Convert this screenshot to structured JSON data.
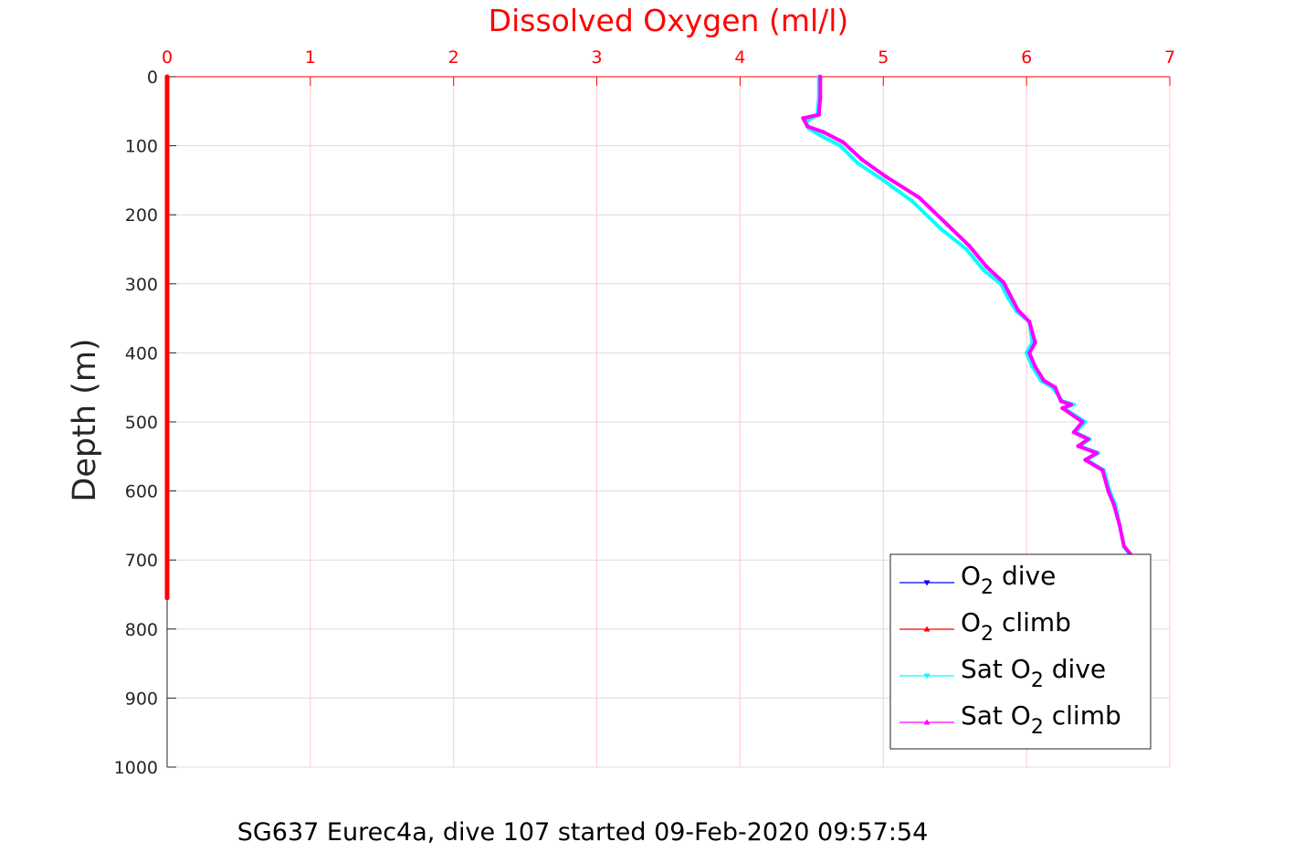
{
  "chart_data": {
    "type": "line",
    "title": "Dissolved Oxygen (ml/l)",
    "xlabel": "Dissolved Oxygen (ml/l)",
    "ylabel": "Depth (m)",
    "xlim": [
      0,
      7
    ],
    "ylim": [
      0,
      1000
    ],
    "y_reversed": true,
    "x_axis_position": "top",
    "xticks": [
      "0",
      "1",
      "2",
      "3",
      "4",
      "5",
      "6",
      "7"
    ],
    "yticks": [
      "0",
      "100",
      "200",
      "300",
      "400",
      "500",
      "600",
      "700",
      "800",
      "900",
      "1000"
    ],
    "grid": true,
    "legend_position": "bottom-right",
    "series": [
      {
        "name": "O2 dive",
        "legend_base": "O",
        "legend_sub": "2",
        "legend_suffix": " dive",
        "color": "#0000ff",
        "x": [],
        "y": []
      },
      {
        "name": "O2 climb",
        "legend_base": "O",
        "legend_sub": "2",
        "legend_suffix": " climb",
        "color": "#ff0000",
        "x": [
          0,
          0,
          0,
          0,
          0,
          0,
          0,
          0,
          0
        ],
        "y": [
          0,
          100,
          200,
          300,
          400,
          500,
          600,
          700,
          755
        ]
      },
      {
        "name": "Sat O2 dive",
        "legend_base": "Sat O",
        "legend_sub": "2",
        "legend_suffix": " dive",
        "color": "#00ffff",
        "x": [
          4.55,
          4.55,
          4.54,
          4.46,
          4.48,
          4.56,
          4.7,
          4.82,
          5.0,
          5.2,
          5.4,
          5.58,
          5.7,
          5.82,
          5.87,
          5.93,
          6.02,
          6.04,
          6.0,
          6.04,
          6.1,
          6.18,
          6.25,
          6.33,
          6.26,
          6.41,
          6.34,
          6.44,
          6.37,
          6.5,
          6.42,
          6.54,
          6.58,
          6.62,
          6.65,
          6.68,
          6.73
        ],
        "y": [
          0,
          30,
          55,
          65,
          75,
          85,
          100,
          125,
          150,
          180,
          220,
          250,
          280,
          300,
          320,
          340,
          355,
          385,
          400,
          420,
          440,
          450,
          470,
          475,
          480,
          500,
          515,
          525,
          535,
          545,
          555,
          570,
          600,
          620,
          650,
          680,
          695
        ]
      },
      {
        "name": "Sat O2 climb",
        "legend_base": "Sat O",
        "legend_sub": "2",
        "legend_suffix": " climb",
        "color": "#ff00ff",
        "x": [
          4.56,
          4.56,
          4.55,
          4.44,
          4.47,
          4.58,
          4.72,
          4.85,
          5.02,
          5.25,
          5.45,
          5.6,
          5.72,
          5.84,
          5.89,
          5.94,
          6.02,
          6.06,
          6.02,
          6.06,
          6.12,
          6.2,
          6.24,
          6.31,
          6.25,
          6.39,
          6.33,
          6.43,
          6.36,
          6.49,
          6.41,
          6.53,
          6.57,
          6.61,
          6.65,
          6.68,
          6.74
        ],
        "y": [
          0,
          30,
          55,
          60,
          72,
          80,
          95,
          120,
          145,
          175,
          215,
          245,
          275,
          298,
          318,
          338,
          355,
          385,
          400,
          420,
          440,
          450,
          470,
          475,
          480,
          500,
          515,
          525,
          535,
          545,
          555,
          570,
          600,
          620,
          650,
          680,
          695
        ]
      }
    ]
  },
  "caption": "SG637 Eurec4a, dive 107 started 09-Feb-2020 09:57:54",
  "colors": {
    "title": "#ff0000",
    "x_axis": "#ff0000",
    "x_grid": "#ffc8d2",
    "y_grid": "#dcdcdc",
    "axis_text": "#262626"
  }
}
